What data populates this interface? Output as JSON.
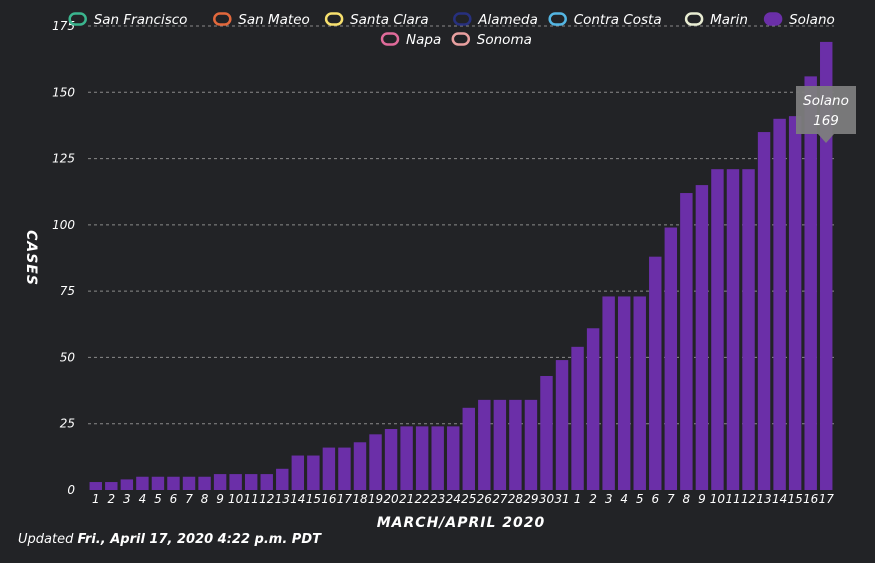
{
  "chart_data": {
    "type": "bar",
    "xlabel": "MARCH/APRIL 2020",
    "ylabel": "CASES",
    "ylim": [
      0,
      175
    ],
    "yticks": [
      0,
      25,
      50,
      75,
      100,
      125,
      150,
      175
    ],
    "grid": true,
    "legend_placement": "top",
    "legend": [
      {
        "name": "San Francisco",
        "color": "#3bb58e"
      },
      {
        "name": "San Mateo",
        "color": "#e2683c"
      },
      {
        "name": "Santa Clara",
        "color": "#f7e06e"
      },
      {
        "name": "Alameda",
        "color": "#27307e"
      },
      {
        "name": "Contra Costa",
        "color": "#54b6e3"
      },
      {
        "name": "Marin",
        "color": "#e8ecd2"
      },
      {
        "name": "Solano",
        "color": "#6b2fa8"
      },
      {
        "name": "Napa",
        "color": "#e06b9a"
      },
      {
        "name": "Sonoma",
        "color": "#e9a0a0"
      }
    ],
    "categories": [
      "1",
      "2",
      "3",
      "4",
      "5",
      "6",
      "7",
      "8",
      "9",
      "10",
      "11",
      "12",
      "13",
      "14",
      "15",
      "16",
      "17",
      "18",
      "19",
      "20",
      "21",
      "22",
      "23",
      "24",
      "25",
      "26",
      "27",
      "28",
      "29",
      "30",
      "31",
      "1",
      "2",
      "3",
      "4",
      "5",
      "6",
      "7",
      "8",
      "9",
      "10",
      "11",
      "12",
      "13",
      "14",
      "15",
      "16",
      "17"
    ],
    "series": [
      {
        "name": "Solano",
        "color": "#6b2fa8",
        "values": [
          3,
          3,
          4,
          5,
          5,
          5,
          5,
          5,
          6,
          6,
          6,
          6,
          8,
          13,
          13,
          16,
          16,
          18,
          21,
          23,
          24,
          24,
          24,
          24,
          31,
          34,
          34,
          34,
          34,
          43,
          49,
          54,
          61,
          73,
          73,
          73,
          88,
          99,
          112,
          115,
          121,
          121,
          121,
          135,
          140,
          141,
          156,
          169
        ]
      }
    ],
    "tooltip": {
      "series": "Solano",
      "value": "169"
    }
  },
  "footer": {
    "prefix": "Updated",
    "date": "Fri., April 17, 2020 4:22 p.m. PDT"
  }
}
